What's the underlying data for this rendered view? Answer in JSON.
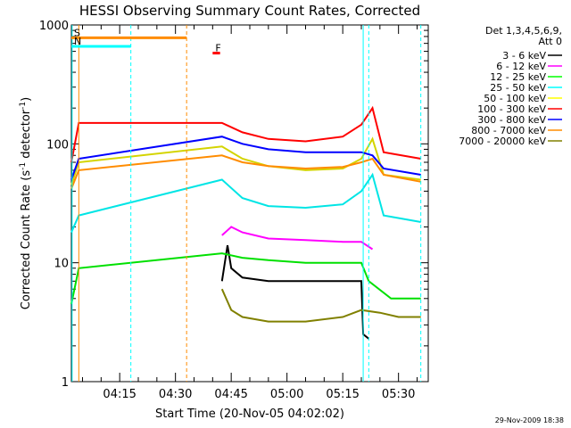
{
  "chart_data": {
    "type": "line",
    "title": "HESSI Observing Summary Count Rates, Corrected",
    "xlabel": "Start Time (20-Nov-05 04:02:02)",
    "ylabel_main": "Corrected Count Rate (s",
    "ylabel_sup1": "-1",
    "ylabel_mid": " detector",
    "ylabel_sup2": "-1",
    "ylabel_end": ")",
    "footer": "29-Nov-2009 18:38",
    "y_scale": "log",
    "ylim": [
      1,
      1000
    ],
    "xlim_minutes_from_04_00": [
      2,
      40
    ],
    "x_ticks": [
      {
        "label": "04:15",
        "minutes": 15
      },
      {
        "label": "04:30",
        "minutes": 30
      },
      {
        "label": "04:45",
        "minutes": 45
      },
      {
        "label": "05:00",
        "minutes": 60
      },
      {
        "label": "05:15",
        "minutes": 75
      },
      {
        "label": "05:30",
        "minutes": 90
      }
    ],
    "y_tick_labels": [
      {
        "label": "1",
        "value": 1
      },
      {
        "label": "10",
        "value": 10
      },
      {
        "label": "100",
        "value": 100
      },
      {
        "label": "1000",
        "value": 1000
      }
    ],
    "legend_title_1": "Det 1,3,4,5,6,9,",
    "legend_title_2": "Att 0",
    "legend_placement": "right, outside plot",
    "series": [
      {
        "name": "3 - 6 keV",
        "color": "#000000",
        "points": [
          [
            42.5,
            7
          ],
          [
            44,
            14
          ],
          [
            45,
            9
          ],
          [
            48,
            7.5
          ],
          [
            55,
            7
          ],
          [
            65,
            7
          ],
          [
            75,
            7
          ],
          [
            80,
            7
          ],
          [
            80.5,
            2.5
          ],
          [
            82,
            2.3
          ]
        ]
      },
      {
        "name": "6 - 12 keV",
        "color": "#ff00ff",
        "points": [
          [
            42.5,
            17
          ],
          [
            45,
            20
          ],
          [
            48,
            18
          ],
          [
            55,
            16
          ],
          [
            65,
            15.5
          ],
          [
            75,
            15
          ],
          [
            80,
            15
          ],
          [
            83,
            13
          ]
        ]
      },
      {
        "name": "12 - 25 keV",
        "color": "#00ff00",
        "points": [
          [
            2,
            4.5
          ],
          [
            4,
            9
          ],
          [
            42.5,
            12
          ],
          [
            48,
            11
          ],
          [
            55,
            10.5
          ],
          [
            65,
            10
          ],
          [
            75,
            10
          ],
          [
            80,
            10
          ],
          [
            82,
            7
          ],
          [
            88,
            5
          ],
          [
            96,
            5
          ]
        ]
      },
      {
        "name": "25 - 50 keV",
        "color": "#00ffff",
        "points": [
          [
            2,
            18
          ],
          [
            4,
            25
          ],
          [
            42.5,
            50
          ],
          [
            48,
            35
          ],
          [
            55,
            30
          ],
          [
            65,
            29
          ],
          [
            75,
            31
          ],
          [
            80,
            40
          ],
          [
            83,
            55
          ],
          [
            86,
            25
          ],
          [
            96,
            22
          ]
        ]
      },
      {
        "name": "50 - 100 keV",
        "color": "#ffff00",
        "points": [
          [
            2,
            45
          ],
          [
            4,
            70
          ],
          [
            42.5,
            95
          ],
          [
            48,
            75
          ],
          [
            55,
            65
          ],
          [
            65,
            60
          ],
          [
            75,
            62
          ],
          [
            80,
            75
          ],
          [
            83,
            110
          ],
          [
            86,
            55
          ],
          [
            96,
            50
          ]
        ]
      },
      {
        "name": "100 - 300 keV",
        "color": "#ff0000",
        "points": [
          [
            2,
            70
          ],
          [
            4,
            150
          ],
          [
            42.5,
            150
          ],
          [
            48,
            125
          ],
          [
            55,
            110
          ],
          [
            65,
            105
          ],
          [
            75,
            115
          ],
          [
            80,
            145
          ],
          [
            83,
            200
          ],
          [
            86,
            85
          ],
          [
            96,
            75
          ]
        ]
      },
      {
        "name": "300 - 800 keV",
        "color": "#0000ff",
        "points": [
          [
            2,
            50
          ],
          [
            4,
            75
          ],
          [
            42.5,
            115
          ],
          [
            48,
            100
          ],
          [
            55,
            90
          ],
          [
            65,
            85
          ],
          [
            75,
            85
          ],
          [
            80,
            85
          ],
          [
            83,
            80
          ],
          [
            86,
            62
          ],
          [
            96,
            55
          ]
        ]
      },
      {
        "name": "800 - 7000 keV",
        "color": "#ff8c00",
        "points": [
          [
            2,
            42
          ],
          [
            4,
            60
          ],
          [
            42.5,
            80
          ],
          [
            48,
            70
          ],
          [
            55,
            65
          ],
          [
            65,
            62
          ],
          [
            75,
            64
          ],
          [
            80,
            70
          ],
          [
            83,
            75
          ],
          [
            86,
            55
          ],
          [
            96,
            48
          ]
        ]
      },
      {
        "name": "7000 - 20000 keV",
        "color": "#808000",
        "points": [
          [
            42.5,
            6
          ],
          [
            45,
            4
          ],
          [
            48,
            3.5
          ],
          [
            55,
            3.2
          ],
          [
            65,
            3.2
          ],
          [
            75,
            3.5
          ],
          [
            80,
            4
          ],
          [
            85,
            3.8
          ],
          [
            90,
            3.5
          ],
          [
            96,
            3.5
          ]
        ]
      }
    ],
    "flags": [
      {
        "label": "S",
        "color": "#ff8c00",
        "start": 2,
        "end": 33,
        "value": 780
      },
      {
        "label": "N",
        "color": "#00ffff",
        "start": 2,
        "end": 18,
        "value": 660
      },
      {
        "label": "F",
        "color": "#ff0000",
        "start": 40,
        "end": 42,
        "value": 580
      }
    ]
  }
}
